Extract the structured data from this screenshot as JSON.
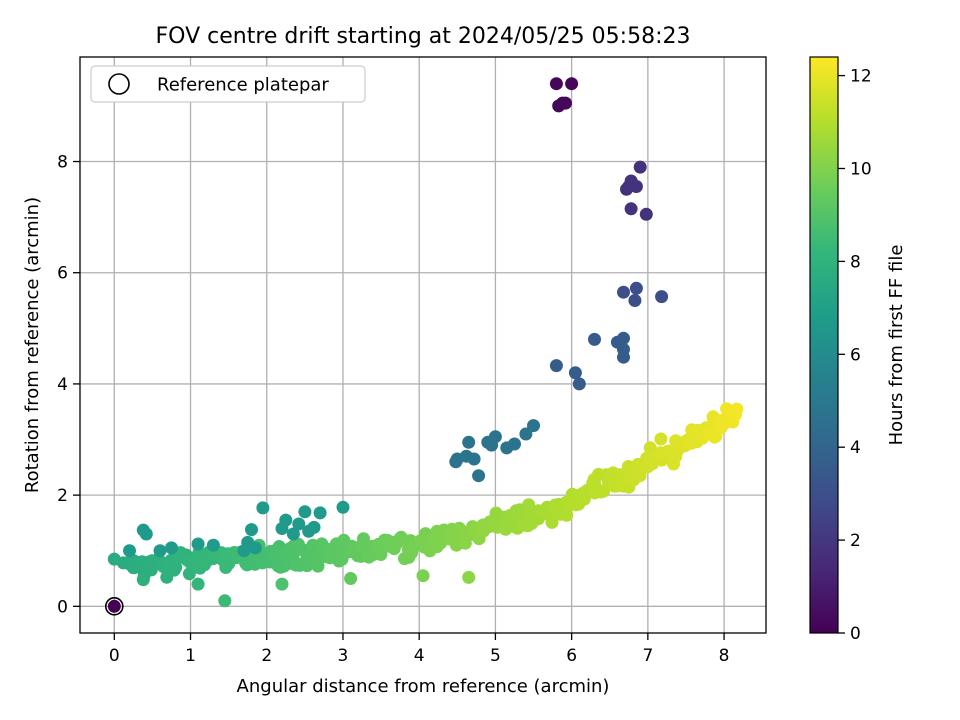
{
  "chart_data": {
    "type": "scatter",
    "title": "FOV centre drift starting at 2024/05/25 05:58:23",
    "xlabel": "Angular distance from reference (arcmin)",
    "ylabel": "Rotation from reference (arcmin)",
    "xlim": [
      -0.45,
      8.55
    ],
    "ylim": [
      -0.48,
      9.88
    ],
    "xticks": [
      "0",
      "1",
      "2",
      "3",
      "4",
      "5",
      "6",
      "7",
      "8"
    ],
    "yticks": [
      "0",
      "2",
      "4",
      "6",
      "8"
    ],
    "grid": true,
    "legend": {
      "placement": "upper-left",
      "entries": [
        "Reference platepar"
      ]
    },
    "colorbar": {
      "label": "Hours from first FF file",
      "range": [
        0,
        12.4
      ],
      "ticks": [
        "0",
        "2",
        "4",
        "6",
        "8",
        "10",
        "12"
      ],
      "colormap": "viridis"
    },
    "reference_point": {
      "x": 0,
      "y": 0
    },
    "clusters": [
      {
        "t": 0.2,
        "points": [
          [
            5.8,
            9.4
          ],
          [
            6.0,
            9.4
          ],
          [
            5.83,
            9.0
          ],
          [
            5.88,
            9.05
          ],
          [
            5.92,
            9.05
          ]
        ]
      },
      {
        "t": 1.8,
        "points": [
          [
            6.9,
            7.9
          ],
          [
            6.75,
            7.55
          ],
          [
            6.85,
            7.55
          ],
          [
            6.78,
            7.65
          ],
          [
            6.72,
            7.5
          ],
          [
            6.8,
            7.6
          ],
          [
            6.78,
            7.15
          ],
          [
            6.98,
            7.05
          ]
        ]
      },
      {
        "t": 3.0,
        "points": [
          [
            6.68,
            5.65
          ],
          [
            6.85,
            5.72
          ],
          [
            7.18,
            5.57
          ],
          [
            6.83,
            5.5
          ]
        ]
      },
      {
        "t": 3.6,
        "points": [
          [
            6.3,
            4.8
          ],
          [
            6.6,
            4.75
          ],
          [
            6.68,
            4.82
          ],
          [
            6.68,
            4.62
          ],
          [
            6.68,
            4.48
          ],
          [
            5.8,
            4.33
          ],
          [
            6.05,
            4.2
          ],
          [
            6.1,
            4.0
          ]
        ]
      },
      {
        "t": 4.7,
        "points": [
          [
            4.5,
            2.65
          ],
          [
            4.48,
            2.6
          ],
          [
            4.62,
            2.7
          ],
          [
            4.65,
            2.95
          ],
          [
            4.72,
            2.65
          ],
          [
            4.78,
            2.35
          ],
          [
            4.9,
            2.95
          ],
          [
            4.95,
            2.9
          ],
          [
            5.0,
            3.05
          ],
          [
            5.15,
            2.85
          ],
          [
            5.25,
            2.92
          ],
          [
            5.4,
            3.1
          ],
          [
            5.5,
            3.25
          ]
        ]
      },
      {
        "t": 6.7,
        "points": [
          [
            1.95,
            1.77
          ],
          [
            2.25,
            1.55
          ],
          [
            2.2,
            1.4
          ],
          [
            2.35,
            1.3
          ],
          [
            2.42,
            1.48
          ],
          [
            2.5,
            1.7
          ],
          [
            2.55,
            1.35
          ],
          [
            2.62,
            1.42
          ],
          [
            2.7,
            1.68
          ],
          [
            3.0,
            1.78
          ],
          [
            1.8,
            1.38
          ],
          [
            1.7,
            1.0
          ],
          [
            1.75,
            1.15
          ],
          [
            1.85,
            1.05
          ],
          [
            1.3,
            1.1
          ],
          [
            1.1,
            1.12
          ],
          [
            0.38,
            1.37
          ],
          [
            0.42,
            1.3
          ],
          [
            0.2,
            1.0
          ],
          [
            0.6,
            1.0
          ],
          [
            0.75,
            1.05
          ]
        ]
      },
      {
        "t": 0.0,
        "points": [
          [
            0.0,
            0.0
          ]
        ]
      }
    ],
    "band": {
      "t_start": 7.6,
      "t_end": 12.2,
      "x_start": 0.0,
      "x_end": 8.15,
      "outliers": [
        [
          1.45,
          0.1
        ],
        [
          4.65,
          0.52
        ],
        [
          4.05,
          0.55
        ],
        [
          3.1,
          0.5
        ],
        [
          2.2,
          0.4
        ],
        [
          0.38,
          0.48
        ],
        [
          1.1,
          0.4
        ],
        [
          1.9,
          1.1
        ],
        [
          0.0,
          0.85
        ]
      ]
    }
  }
}
